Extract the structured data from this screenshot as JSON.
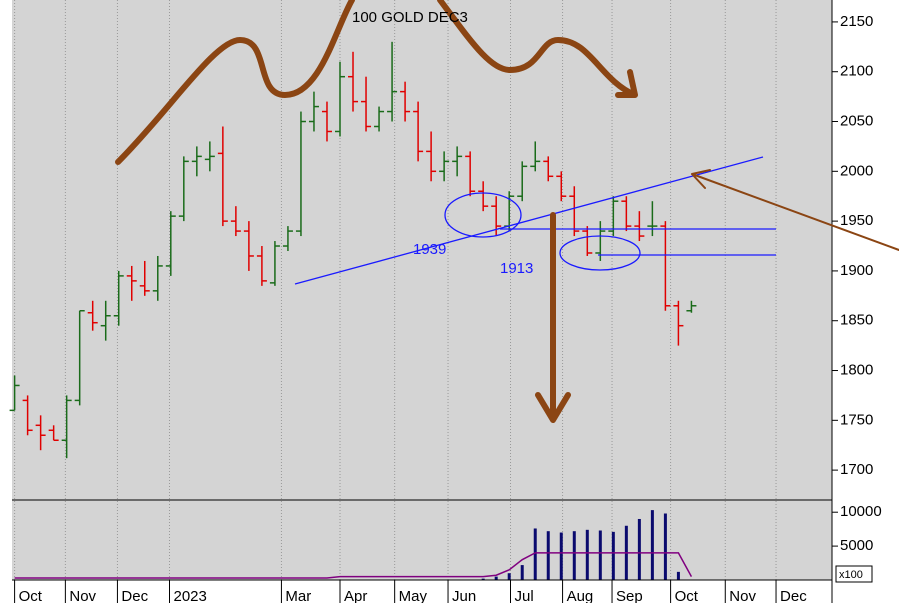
{
  "chart_data": {
    "type": "ohlc",
    "title": "100 GOLD DEC3",
    "annotations": [
      "1939",
      "1913"
    ],
    "xlim": [
      -0.2,
      62.8
    ],
    "xticks": [
      {
        "value": 0,
        "label": "Oct"
      },
      {
        "value": 3.9,
        "label": "Nov"
      },
      {
        "value": 7.9,
        "label": "Dec"
      },
      {
        "value": 11.9,
        "label": "2023"
      },
      {
        "value": 20.5,
        "label": "Mar"
      },
      {
        "value": 25,
        "label": "Apr"
      },
      {
        "value": 29.2,
        "label": "May"
      },
      {
        "value": 33.3,
        "label": "Jun"
      },
      {
        "value": 38.1,
        "label": "Jul"
      },
      {
        "value": 42.1,
        "label": "Aug"
      },
      {
        "value": 45.9,
        "label": "Sep"
      },
      {
        "value": 50.4,
        "label": "Oct"
      },
      {
        "value": 54.6,
        "label": "Nov"
      },
      {
        "value": 58.5,
        "label": "Dec"
      }
    ],
    "ylim": [
      1670,
      2172
    ],
    "yticks": [
      1700,
      1750,
      1800,
      1850,
      1900,
      1950,
      2000,
      2050,
      2100,
      2150
    ],
    "grid": true,
    "up_color": "#1a6b1a",
    "down_color": "#e00000",
    "open": [
      1760,
      1770,
      1745,
      1740,
      1730,
      1770,
      1858,
      1845,
      1855,
      1895,
      1885,
      1880,
      1905,
      1955,
      2010,
      2012,
      2018,
      1950,
      1940,
      1915,
      1888,
      1925,
      1940,
      2050,
      2060,
      2040,
      2095,
      2070,
      2045,
      2060,
      2080,
      2060,
      2020,
      2000,
      2010,
      2015,
      1980,
      1965,
      1945,
      1975,
      2005,
      2010,
      1995,
      1975,
      1940,
      1918,
      1940,
      1970,
      1945,
      1945,
      1945,
      1865,
      1860
    ],
    "high": [
      1795,
      1775,
      1755,
      1745,
      1775,
      1860,
      1870,
      1870,
      1900,
      1905,
      1910,
      1915,
      1960,
      2015,
      2025,
      2030,
      2045,
      1965,
      1950,
      1925,
      1930,
      1945,
      2060,
      2080,
      2070,
      2110,
      2120,
      2095,
      2065,
      2130,
      2090,
      2070,
      2040,
      2020,
      2025,
      2020,
      1990,
      1975,
      1980,
      2010,
      2030,
      2015,
      2000,
      1985,
      1945,
      1950,
      1975,
      1975,
      1960,
      1970,
      1950,
      1870,
      1870
    ],
    "low": [
      1760,
      1735,
      1720,
      1730,
      1712,
      1765,
      1840,
      1830,
      1845,
      1870,
      1875,
      1870,
      1895,
      1950,
      1995,
      2000,
      1945,
      1935,
      1900,
      1885,
      1885,
      1920,
      1935,
      2040,
      2030,
      2035,
      2060,
      2040,
      2040,
      2050,
      2050,
      2010,
      1990,
      1990,
      1995,
      1975,
      1960,
      1935,
      1940,
      1970,
      2000,
      1990,
      1970,
      1935,
      1915,
      1910,
      1935,
      1940,
      1930,
      1935,
      1860,
      1825,
      1858
    ],
    "close": [
      1785,
      1740,
      1735,
      1730,
      1770,
      1860,
      1848,
      1855,
      1895,
      1890,
      1880,
      1905,
      1955,
      2010,
      2015,
      2015,
      1950,
      1940,
      1915,
      1890,
      1925,
      1940,
      2050,
      2065,
      2040,
      2095,
      2070,
      2045,
      2060,
      2080,
      2060,
      2020,
      2000,
      2010,
      2015,
      1980,
      1965,
      1945,
      1975,
      2005,
      2010,
      1995,
      1975,
      1940,
      1918,
      1940,
      1970,
      1945,
      1935,
      1945,
      1865,
      1845,
      1865
    ],
    "volume": {
      "ylim": [
        0,
        11800
      ],
      "yticks": [
        5000,
        10000
      ],
      "scale_label": "x100",
      "color": "#0a0a6e",
      "values": [
        null,
        null,
        null,
        null,
        null,
        null,
        null,
        null,
        null,
        null,
        null,
        null,
        null,
        null,
        null,
        null,
        null,
        null,
        null,
        null,
        null,
        null,
        null,
        null,
        null,
        null,
        null,
        null,
        null,
        null,
        null,
        null,
        null,
        null,
        null,
        null,
        200,
        500,
        1000,
        2200,
        7600,
        7200,
        7000,
        7200,
        7400,
        7300,
        7100,
        8000,
        9000,
        10300,
        9800,
        1200,
        null
      ],
      "oi_color": "#800080",
      "open_interest": [
        300,
        300,
        300,
        300,
        300,
        300,
        300,
        300,
        300,
        300,
        300,
        300,
        300,
        300,
        300,
        300,
        300,
        300,
        300,
        300,
        300,
        300,
        300,
        300,
        300,
        500,
        500,
        500,
        500,
        500,
        500,
        500,
        500,
        500,
        500,
        500,
        500,
        700,
        1500,
        3000,
        4000,
        4000,
        4000,
        4000,
        4000,
        4000,
        4000,
        4000,
        4000,
        4000,
        4000,
        4000,
        500
      ]
    }
  }
}
